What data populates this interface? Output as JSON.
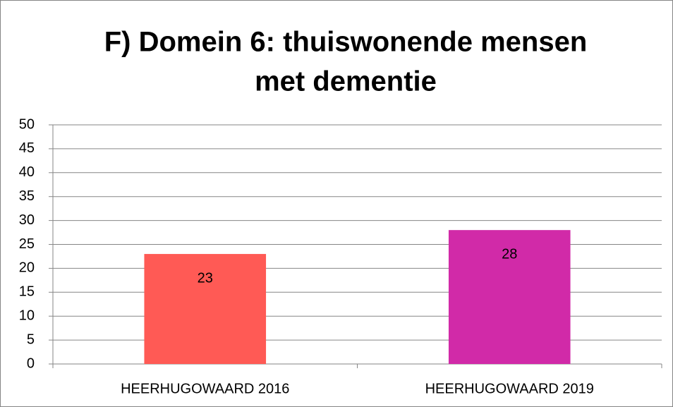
{
  "chart_data": {
    "type": "bar",
    "title": [
      "F) Domein 6: thuiswonende mensen",
      "met dementie"
    ],
    "categories": [
      "HEERHUGOWAARD 2016",
      "HEERHUGOWAARD 2019"
    ],
    "values": [
      23,
      28
    ],
    "colors": [
      "#ff5a55",
      "#d12aa8"
    ],
    "ylim": [
      0,
      50
    ],
    "yticks": [
      0,
      5,
      10,
      15,
      20,
      25,
      30,
      35,
      40,
      45,
      50
    ],
    "grid": true
  }
}
